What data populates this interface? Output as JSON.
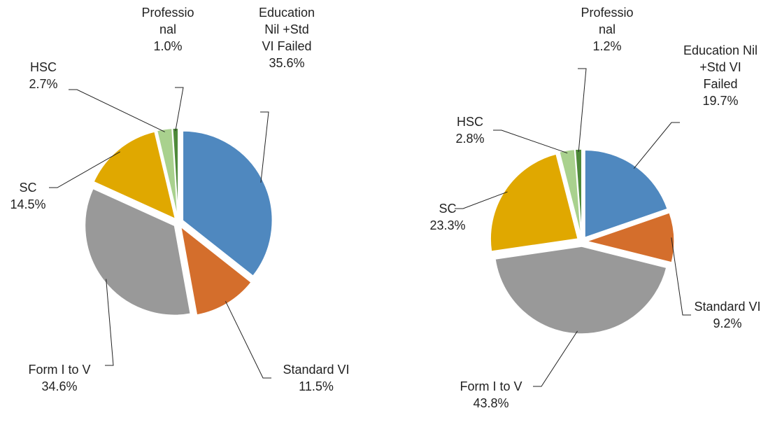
{
  "chart_data": [
    {
      "type": "pie",
      "categories": [
        "Education Nil +Std VI Failed",
        "Standard VI",
        "Form I to V",
        "SC",
        "HSC",
        "Professional"
      ],
      "values": [
        35.6,
        11.5,
        34.6,
        14.5,
        2.7,
        1.0
      ],
      "value_labels": [
        "35.6%",
        "11.5%",
        "34.6%",
        "14.5%",
        "2.7%",
        "1.0%"
      ],
      "colors": [
        "#4f88bf",
        "#d46e2c",
        "#999999",
        "#e0a800",
        "#a9d18e",
        "#4e8a3a"
      ]
    },
    {
      "type": "pie",
      "categories": [
        "Education Nil +Std VI Failed",
        "Standard VI",
        "Form I to V",
        "SC",
        "HSC",
        "Professional"
      ],
      "values": [
        19.7,
        9.2,
        43.8,
        23.3,
        2.8,
        1.2
      ],
      "value_labels": [
        "19.7%",
        "9.2%",
        "43.8%",
        "23.3%",
        "2.8%",
        "1.2%"
      ],
      "colors": [
        "#4f88bf",
        "#d46e2c",
        "#999999",
        "#e0a800",
        "#a9d18e",
        "#4e8a3a"
      ]
    }
  ]
}
